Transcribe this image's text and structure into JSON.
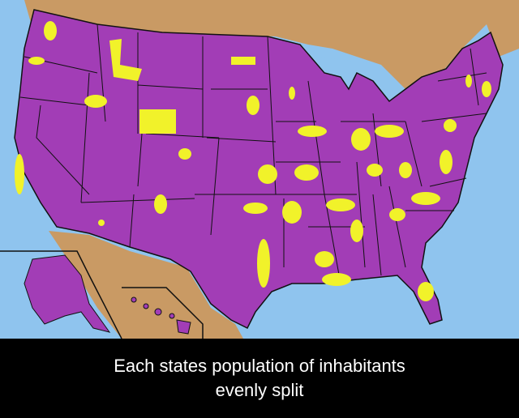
{
  "caption": {
    "lines": [
      "Each states population of inhabitants",
      "evenly split"
    ]
  }
}
